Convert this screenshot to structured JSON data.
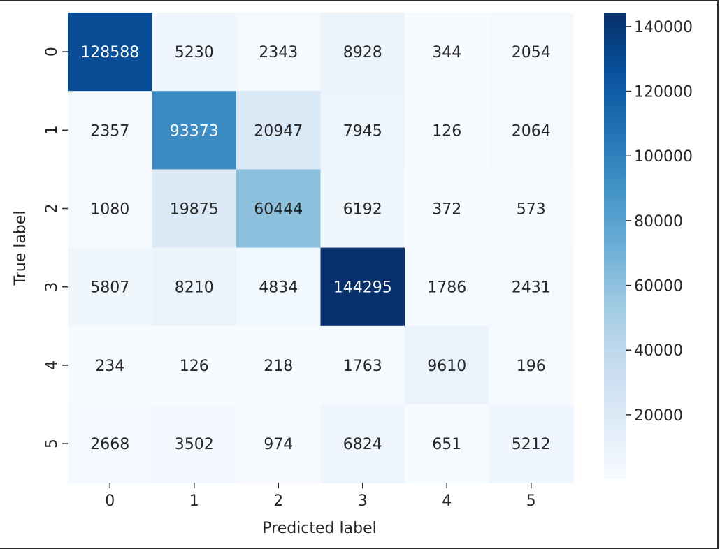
{
  "chart_data": {
    "type": "heatmap",
    "title": "",
    "xlabel": "Predicted label",
    "ylabel": "True label",
    "x_ticks": [
      "0",
      "1",
      "2",
      "3",
      "4",
      "5"
    ],
    "y_ticks": [
      "0",
      "1",
      "2",
      "3",
      "4",
      "5"
    ],
    "matrix": [
      [
        128588,
        5230,
        2343,
        8928,
        344,
        2054
      ],
      [
        2357,
        93373,
        20947,
        7945,
        126,
        2064
      ],
      [
        1080,
        19875,
        60444,
        6192,
        372,
        573
      ],
      [
        5807,
        8210,
        4834,
        144295,
        1786,
        2431
      ],
      [
        234,
        126,
        218,
        1763,
        9610,
        196
      ],
      [
        2668,
        3502,
        974,
        6824,
        651,
        5212
      ]
    ],
    "colormap": "Blues",
    "colorbar": {
      "ticks": [
        20000,
        40000,
        60000,
        80000,
        100000,
        120000,
        140000
      ],
      "tick_labels": [
        "20000",
        "40000",
        "60000",
        "80000",
        "100000",
        "120000",
        "140000"
      ],
      "vmin": 126,
      "vmax": 144295
    },
    "grid": false
  }
}
